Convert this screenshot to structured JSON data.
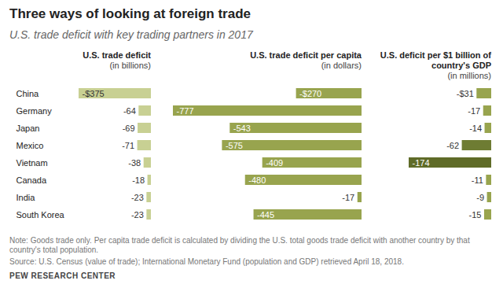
{
  "title": "Three ways of looking at foreign trade",
  "subtitle": "U.S. trade deficit with key trading partners in 2017",
  "note": "Note: Goods trade only. Per capita trade deficit is calculated by dividing the U.S. total goods trade deficit with another country by that country's total population.",
  "source": "Source: U.S. Census (value of trade); International Monetary Fund (population and GDP) retrieved April 18, 2018.",
  "credit": "PEW RESEARCH CENTER",
  "chart_data": [
    {
      "type": "bar",
      "orientation": "horizontal",
      "title": "U.S. trade deficit",
      "subtitle": "(in billions)",
      "categories": [
        "China",
        "Germany",
        "Japan",
        "Mexico",
        "Vietnam",
        "Canada",
        "India",
        "South Korea"
      ],
      "values": [
        -375,
        -64,
        -69,
        -71,
        -38,
        -18,
        -23,
        -23
      ],
      "value_labels": [
        "-$375",
        "-64",
        "-69",
        "-71",
        "-38",
        "-18",
        "-23",
        "-23"
      ],
      "data_labels": true,
      "xlim": [
        -375,
        0
      ],
      "color": "#c8d093",
      "tick_labels": "y"
    },
    {
      "type": "bar",
      "orientation": "horizontal",
      "title": "U.S. trade deficit per capita",
      "subtitle": "(in dollars)",
      "categories": [
        "China",
        "Germany",
        "Japan",
        "Mexico",
        "Vietnam",
        "Canada",
        "India",
        "South Korea"
      ],
      "values": [
        -270,
        -777,
        -543,
        -575,
        -409,
        -480,
        -17,
        -445
      ],
      "value_labels": [
        "-$270",
        "-777",
        "-543",
        "-575",
        "-409",
        "-480",
        "-17",
        "-445"
      ],
      "data_labels": true,
      "xlim": [
        -777,
        0
      ],
      "color": "#98a44e",
      "tick_labels": false
    },
    {
      "type": "bar",
      "orientation": "horizontal",
      "title": "U.S. deficit per $1 billion of country's GDP",
      "subtitle": "(in millions)",
      "categories": [
        "China",
        "Germany",
        "Japan",
        "Mexico",
        "Vietnam",
        "Canada",
        "India",
        "South Korea"
      ],
      "values": [
        -31,
        -17,
        -14,
        -62,
        -174,
        -11,
        -9,
        -15
      ],
      "value_labels": [
        "-$31",
        "-17",
        "-14",
        "-62",
        "-174",
        "-11",
        "-9",
        "-15"
      ],
      "data_labels": true,
      "xlim": [
        -174,
        0
      ],
      "colors": [
        "#98a44e",
        "#98a44e",
        "#98a44e",
        "#6e7c33",
        "#5f6b28",
        "#98a44e",
        "#98a44e",
        "#98a44e"
      ],
      "tick_labels": false
    }
  ]
}
